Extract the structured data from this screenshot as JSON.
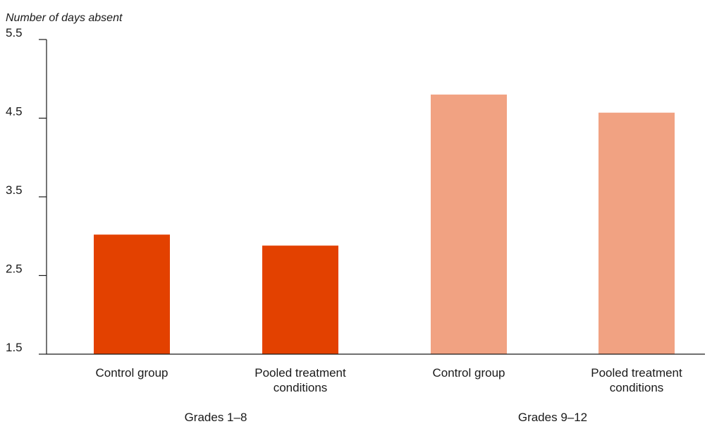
{
  "chart_data": {
    "type": "bar",
    "ylabel": "Number of days absent",
    "ylim": [
      1.5,
      5.5
    ],
    "yticks": [
      "1.5",
      "2.5",
      "3.5",
      "4.5",
      "5.5"
    ],
    "groups": [
      {
        "label": "Grades 1–8",
        "color": "#e34100",
        "bars": [
          {
            "category": "Control group",
            "value": 3.02
          },
          {
            "category": "Pooled treatment conditions",
            "value": 2.88
          }
        ]
      },
      {
        "label": "Grades 9–12",
        "color": "#f1a282",
        "bars": [
          {
            "category": "Control group",
            "value": 4.8
          },
          {
            "category": "Pooled treatment conditions",
            "value": 4.57
          }
        ]
      }
    ]
  }
}
